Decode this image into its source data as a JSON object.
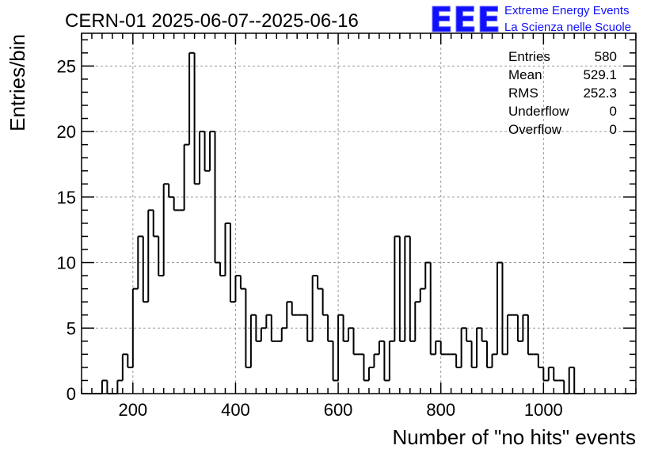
{
  "header": {
    "title": "CERN-01 2025-06-07--2025-06-16"
  },
  "logo": {
    "mark": "EEE",
    "line1": "Extreme Energy Events",
    "line2": "La Scienza nelle Scuole"
  },
  "stats": [
    {
      "label": "Entries",
      "value": "580"
    },
    {
      "label": "Mean",
      "value": "529.1"
    },
    {
      "label": "RMS",
      "value": "252.3"
    },
    {
      "label": "Underflow",
      "value": "0"
    },
    {
      "label": "Overflow",
      "value": "0"
    }
  ],
  "chart_data": {
    "type": "bar",
    "title": "CERN-01 2025-06-07--2025-06-16",
    "xlabel": "Number of \"no hits\" events",
    "ylabel": "Entries/bin",
    "xlim": [
      100,
      1180
    ],
    "ylim": [
      0,
      27.5
    ],
    "grid": true,
    "bin_width": 10,
    "bin_edges_start": 100,
    "x_ticks": [
      200,
      400,
      600,
      800,
      1000
    ],
    "y_ticks": [
      0,
      5,
      10,
      15,
      20,
      25
    ],
    "x_tick_labels": [
      "200",
      "400",
      "600",
      "800",
      "1000"
    ],
    "y_tick_labels": [
      "0",
      "5",
      "10",
      "15",
      "20",
      "25"
    ],
    "values": [
      0,
      0,
      0,
      0,
      1,
      0,
      0,
      1,
      3,
      2,
      8,
      12,
      7,
      14,
      12,
      9,
      16,
      15,
      14,
      14,
      19,
      26,
      16,
      20,
      17,
      20,
      10,
      9,
      13,
      7,
      9,
      8,
      2,
      6,
      4,
      5,
      6,
      4,
      4,
      5,
      7,
      6,
      6,
      6,
      4,
      9,
      8,
      6,
      4,
      1,
      6,
      4,
      5,
      3,
      3,
      1,
      2,
      3,
      4,
      1,
      4,
      12,
      4,
      12,
      4,
      7,
      8,
      10,
      3,
      4,
      3,
      3,
      3,
      2,
      5,
      4,
      2,
      5,
      4,
      2,
      3,
      10,
      3,
      6,
      6,
      4,
      6,
      3,
      3,
      2,
      1,
      2,
      1,
      1,
      0,
      2,
      0,
      0
    ]
  }
}
